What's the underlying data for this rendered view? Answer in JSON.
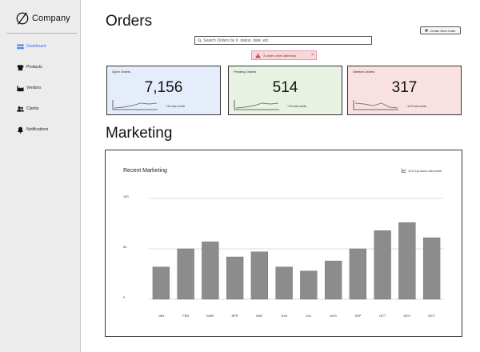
{
  "brand": {
    "name": "Company",
    "logo_icon": "slashed-circle-icon"
  },
  "sidebar": {
    "items": [
      {
        "label": "Dashboard",
        "icon": "grid-icon",
        "active": true
      },
      {
        "label": "Products",
        "icon": "shirt-icon",
        "active": false
      },
      {
        "label": "Vendors",
        "icon": "factory-icon",
        "active": false
      },
      {
        "label": "Clients",
        "icon": "users-icon",
        "active": false
      },
      {
        "label": "Notifications",
        "icon": "bell-icon",
        "active": false
      }
    ]
  },
  "orders": {
    "title": "Orders",
    "create_button": "Create New Order",
    "search_placeholder": "Search Orders by #, status, date, etc.",
    "alert": {
      "text": "3 orders need attention",
      "close": "×"
    },
    "cards": [
      {
        "title": "Open Orders",
        "value": "7,156",
        "delta": "+4% last month",
        "color": "#e5edfb"
      },
      {
        "title": "Pending Orders",
        "value": "514",
        "delta": "+2% last month",
        "color": "#e8f2e3"
      },
      {
        "title": "Deleted Orders",
        "value": "317",
        "delta": "-12% last month",
        "color": "#f9e1e1"
      }
    ]
  },
  "marketing": {
    "title": "Marketing",
    "panel_title": "Recent Marketing",
    "trend": "11% Up since last week"
  },
  "chart_data": {
    "type": "bar",
    "categories": [
      "JAN",
      "FEB",
      "MAR",
      "APR",
      "MAY",
      "JUN",
      "JUL",
      "AUG",
      "SEP",
      "OCT",
      "NOV",
      "DEC"
    ],
    "values": [
      32,
      50,
      57,
      42,
      47,
      32,
      28,
      38,
      50,
      68,
      76,
      61
    ],
    "yticks": [
      0,
      50,
      100
    ],
    "ylim": [
      0,
      100
    ],
    "title": "Recent Marketing",
    "xlabel": "",
    "ylabel": "",
    "grid": true,
    "bar_color": "#8c8c8c"
  }
}
